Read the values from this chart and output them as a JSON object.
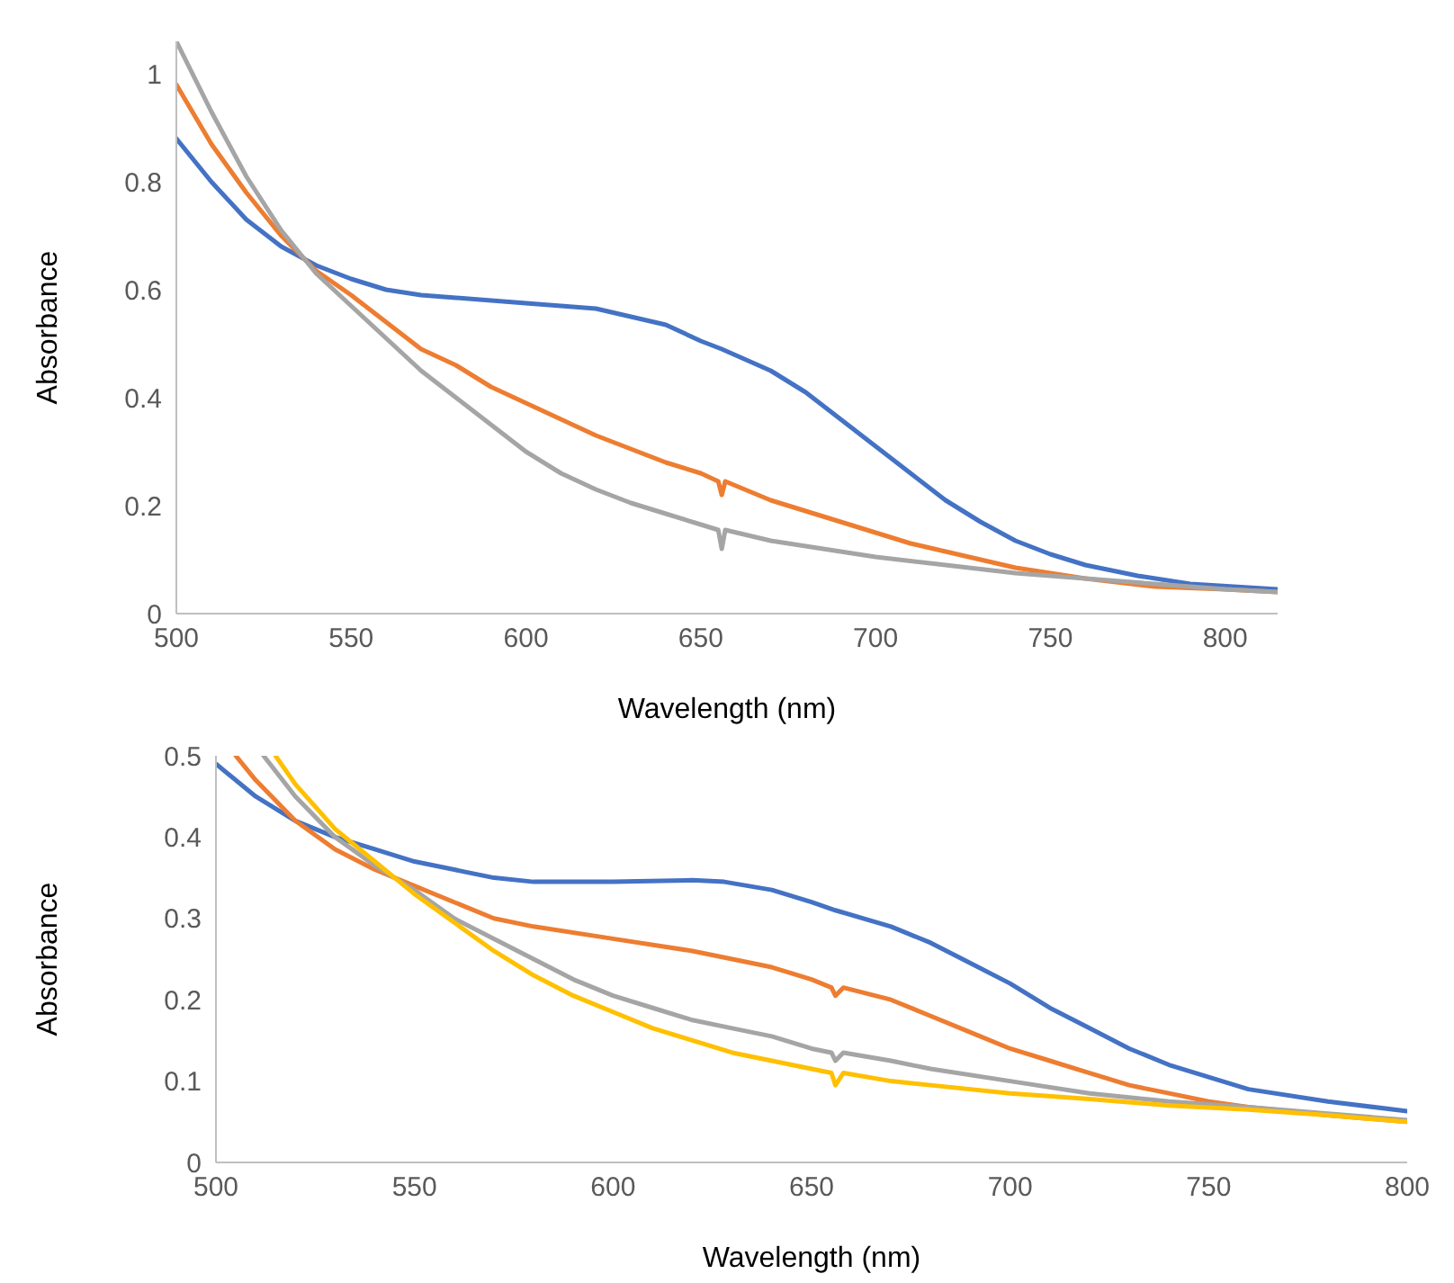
{
  "chart_data": [
    {
      "type": "line",
      "xlabel": "Wavelength (nm)",
      "ylabel": "Absorbance",
      "xlim": [
        500,
        815
      ],
      "xticks": [
        500,
        550,
        600,
        650,
        700,
        750,
        800
      ],
      "ylim": [
        0,
        1.06
      ],
      "yticks": [
        0,
        0.2,
        0.4,
        0.6,
        0.8,
        1
      ],
      "grid": false,
      "legend": false,
      "marker": "none",
      "series": [
        {
          "color": "#4472c4",
          "x": [
            500,
            510,
            520,
            530,
            540,
            550,
            560,
            570,
            580,
            600,
            620,
            630,
            640,
            650,
            656,
            670,
            680,
            690,
            700,
            710,
            720,
            730,
            740,
            750,
            760,
            775,
            790,
            815
          ],
          "values": [
            0.88,
            0.8,
            0.73,
            0.68,
            0.645,
            0.62,
            0.6,
            0.59,
            0.585,
            0.575,
            0.565,
            0.55,
            0.535,
            0.505,
            0.49,
            0.45,
            0.41,
            0.36,
            0.31,
            0.26,
            0.21,
            0.17,
            0.135,
            0.11,
            0.09,
            0.07,
            0.055,
            0.045
          ]
        },
        {
          "color": "#ed7d31",
          "x": [
            500,
            510,
            520,
            530,
            540,
            550,
            560,
            570,
            580,
            590,
            600,
            610,
            620,
            630,
            640,
            650,
            655,
            656,
            657,
            670,
            680,
            690,
            700,
            710,
            720,
            730,
            740,
            760,
            780,
            800,
            815
          ],
          "values": [
            0.98,
            0.87,
            0.78,
            0.7,
            0.635,
            0.59,
            0.54,
            0.49,
            0.46,
            0.42,
            0.39,
            0.36,
            0.33,
            0.305,
            0.28,
            0.26,
            0.245,
            0.22,
            0.245,
            0.21,
            0.19,
            0.17,
            0.15,
            0.13,
            0.115,
            0.1,
            0.085,
            0.065,
            0.05,
            0.045,
            0.04
          ]
        },
        {
          "color": "#a5a5a5",
          "x": [
            500,
            510,
            520,
            530,
            540,
            550,
            560,
            570,
            580,
            590,
            600,
            610,
            620,
            630,
            640,
            650,
            655,
            656,
            657,
            670,
            680,
            700,
            720,
            740,
            760,
            780,
            800,
            815
          ],
          "values": [
            1.06,
            0.93,
            0.81,
            0.71,
            0.63,
            0.57,
            0.51,
            0.45,
            0.4,
            0.35,
            0.3,
            0.26,
            0.23,
            0.205,
            0.185,
            0.165,
            0.155,
            0.12,
            0.155,
            0.135,
            0.125,
            0.105,
            0.09,
            0.075,
            0.065,
            0.055,
            0.045,
            0.04
          ]
        }
      ]
    },
    {
      "type": "line",
      "xlabel": "Wavelength (nm)",
      "ylabel": "Absorbance",
      "xlim": [
        500,
        800
      ],
      "xticks": [
        500,
        550,
        600,
        650,
        700,
        750,
        800
      ],
      "ylim": [
        0,
        0.5
      ],
      "yticks": [
        0,
        0.1,
        0.2,
        0.3,
        0.4,
        0.5
      ],
      "grid": false,
      "legend": false,
      "marker": "none",
      "series": [
        {
          "color": "#4472c4",
          "x": [
            500,
            510,
            520,
            530,
            540,
            550,
            560,
            570,
            580,
            600,
            620,
            628,
            640,
            650,
            656,
            670,
            680,
            690,
            700,
            710,
            720,
            730,
            740,
            750,
            760,
            780,
            800
          ],
          "values": [
            0.49,
            0.45,
            0.42,
            0.4,
            0.385,
            0.37,
            0.36,
            0.35,
            0.345,
            0.345,
            0.347,
            0.345,
            0.335,
            0.32,
            0.31,
            0.29,
            0.27,
            0.245,
            0.22,
            0.19,
            0.165,
            0.14,
            0.12,
            0.105,
            0.09,
            0.075,
            0.063
          ]
        },
        {
          "color": "#ed7d31",
          "x": [
            505,
            510,
            520,
            530,
            540,
            550,
            560,
            570,
            580,
            600,
            620,
            630,
            640,
            650,
            655,
            656,
            658,
            670,
            680,
            690,
            700,
            710,
            720,
            730,
            740,
            750,
            760,
            780,
            800
          ],
          "values": [
            0.5,
            0.47,
            0.42,
            0.385,
            0.36,
            0.34,
            0.32,
            0.3,
            0.29,
            0.275,
            0.26,
            0.25,
            0.24,
            0.225,
            0.215,
            0.205,
            0.215,
            0.2,
            0.18,
            0.16,
            0.14,
            0.125,
            0.11,
            0.095,
            0.085,
            0.075,
            0.068,
            0.058,
            0.05
          ]
        },
        {
          "color": "#a5a5a5",
          "x": [
            512,
            520,
            530,
            540,
            550,
            560,
            570,
            580,
            590,
            600,
            610,
            620,
            630,
            640,
            650,
            655,
            656,
            658,
            670,
            680,
            700,
            720,
            740,
            760,
            780,
            800
          ],
          "values": [
            0.5,
            0.45,
            0.4,
            0.365,
            0.335,
            0.3,
            0.275,
            0.25,
            0.225,
            0.205,
            0.19,
            0.175,
            0.165,
            0.155,
            0.14,
            0.135,
            0.125,
            0.135,
            0.125,
            0.115,
            0.1,
            0.085,
            0.075,
            0.068,
            0.06,
            0.052
          ]
        },
        {
          "color": "#ffc000",
          "x": [
            515,
            520,
            530,
            540,
            550,
            560,
            570,
            580,
            590,
            600,
            610,
            620,
            630,
            640,
            650,
            655,
            656,
            658,
            670,
            680,
            700,
            720,
            740,
            760,
            780,
            800
          ],
          "values": [
            0.5,
            0.465,
            0.41,
            0.37,
            0.33,
            0.295,
            0.26,
            0.23,
            0.205,
            0.185,
            0.165,
            0.15,
            0.135,
            0.125,
            0.115,
            0.11,
            0.095,
            0.11,
            0.1,
            0.095,
            0.085,
            0.078,
            0.07,
            0.065,
            0.058,
            0.05
          ]
        }
      ]
    }
  ]
}
